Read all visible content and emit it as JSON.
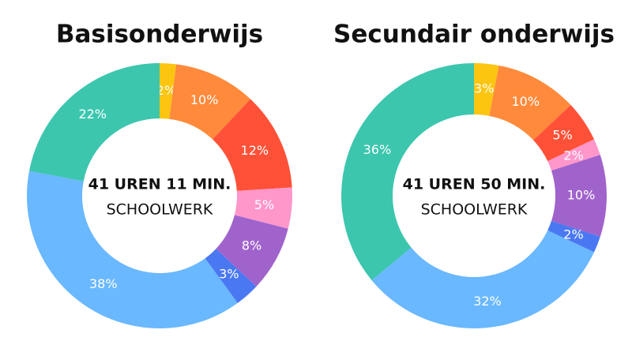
{
  "chart_data": [
    {
      "type": "donut",
      "title": "Basisonderwijs",
      "center_text": [
        "41 UREN 11 MIN.",
        "SCHOOLWERK"
      ],
      "values": [
        2,
        10,
        12,
        5,
        8,
        3,
        38,
        22
      ],
      "value_labels": [
        "2%",
        "10%",
        "12%",
        "5%",
        "8%",
        "3%",
        "38%",
        "22%"
      ],
      "colors": [
        "#fcc510",
        "#ff8a3b",
        "#ff5138",
        "#ff97cb",
        "#a063cc",
        "#4a78f2",
        "#6ab8ff",
        "#3cc6ae"
      ]
    },
    {
      "type": "donut",
      "title": "Secundair onderwijs",
      "center_text": [
        "41 UREN 50 MIN.",
        "SCHOOLWERK"
      ],
      "values": [
        3,
        10,
        5,
        2,
        10,
        2,
        32,
        36
      ],
      "value_labels": [
        "3%",
        "10%",
        "5%",
        "2%",
        "10%",
        "2%",
        "32%",
        "36%"
      ],
      "colors": [
        "#fcc510",
        "#ff8a3b",
        "#ff5138",
        "#ff97cb",
        "#a063cc",
        "#4a78f2",
        "#6ab8ff",
        "#3cc6ae"
      ]
    }
  ]
}
